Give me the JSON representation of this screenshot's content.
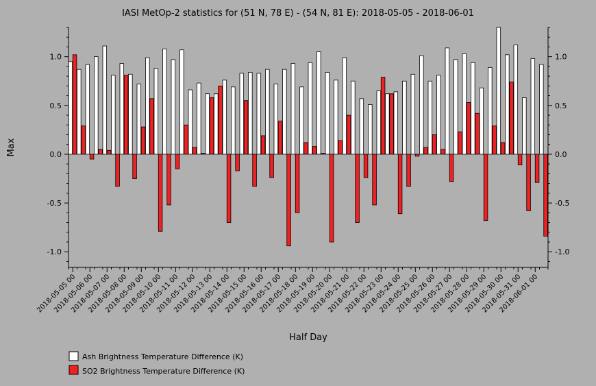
{
  "chart_data": {
    "type": "bar",
    "title": "IASI MetOp-2 statistics for (51 N, 78 E) - (54 N, 81 E): 2018-05-05 - 2018-06-01",
    "xlabel": "Half Day",
    "ylabel": "Max",
    "ylim": [
      -1.16,
      1.3
    ],
    "yticks": [
      -1.0,
      -0.5,
      0.0,
      0.5,
      1.0
    ],
    "ytick_labels": [
      "-1.0",
      "-0.5",
      "0.0",
      "0.5",
      "1.0"
    ],
    "grid": false,
    "legend_position": "bottom-left",
    "xtick_labels": [
      "2018-05-05 00",
      "2018-05-06 00",
      "2018-05-07 00",
      "2018-05-08 00",
      "2018-05-09 00",
      "2018-05-10 00",
      "2018-05-11 00",
      "2018-05-12 00",
      "2018-05-13 00",
      "2018-05-14 00",
      "2018-05-15 00",
      "2018-05-16 00",
      "2018-05-17 00",
      "2018-05-18 00",
      "2018-05-19 00",
      "2018-05-20 00",
      "2018-05-21 00",
      "2018-05-22 00",
      "2018-05-23 00",
      "2018-05-24 00",
      "2018-05-25 00",
      "2018-05-26 00",
      "2018-05-27 00",
      "2018-05-28 00",
      "2018-05-29 00",
      "2018-05-30 00",
      "2018-05-31 00",
      "2018-06-01 00"
    ],
    "series": [
      {
        "name": "Ash Brightness Temperature Difference (K)",
        "color": "#ffffff",
        "values": [
          0.95,
          0.87,
          0.92,
          1.0,
          1.11,
          0.81,
          0.93,
          0.82,
          0.72,
          0.99,
          0.88,
          1.08,
          0.97,
          1.07,
          0.66,
          0.73,
          0.62,
          0.62,
          0.76,
          0.69,
          0.83,
          0.84,
          0.83,
          0.87,
          0.72,
          0.87,
          0.93,
          0.69,
          0.94,
          1.05,
          0.84,
          0.76,
          0.99,
          0.75,
          0.57,
          0.51,
          0.65,
          0.62,
          0.64,
          0.75,
          0.82,
          1.01,
          0.75,
          0.81,
          1.09,
          0.97,
          1.03,
          0.94,
          0.68,
          0.89,
          1.3,
          1.02,
          1.12,
          0.58,
          0.98,
          0.92
        ]
      },
      {
        "name": "SO2 Brightness Temperature Difference (K)",
        "color": "#ee2222",
        "values": [
          1.02,
          0.29,
          -0.05,
          0.05,
          0.04,
          -0.33,
          0.81,
          -0.25,
          0.28,
          0.57,
          -0.79,
          -0.52,
          -0.15,
          0.3,
          0.07,
          0.01,
          0.58,
          0.7,
          -0.7,
          -0.17,
          0.55,
          -0.33,
          0.19,
          -0.24,
          0.34,
          -0.94,
          -0.6,
          0.12,
          0.08,
          0.01,
          -0.9,
          0.14,
          0.4,
          -0.7,
          -0.24,
          -0.52,
          0.79,
          0.62,
          -0.61,
          -0.33,
          -0.02,
          0.07,
          0.2,
          0.05,
          -0.28,
          0.23,
          0.53,
          0.42,
          -0.68,
          0.29,
          0.12,
          0.74,
          -0.11,
          -0.58,
          -0.29,
          -0.84
        ]
      }
    ]
  }
}
